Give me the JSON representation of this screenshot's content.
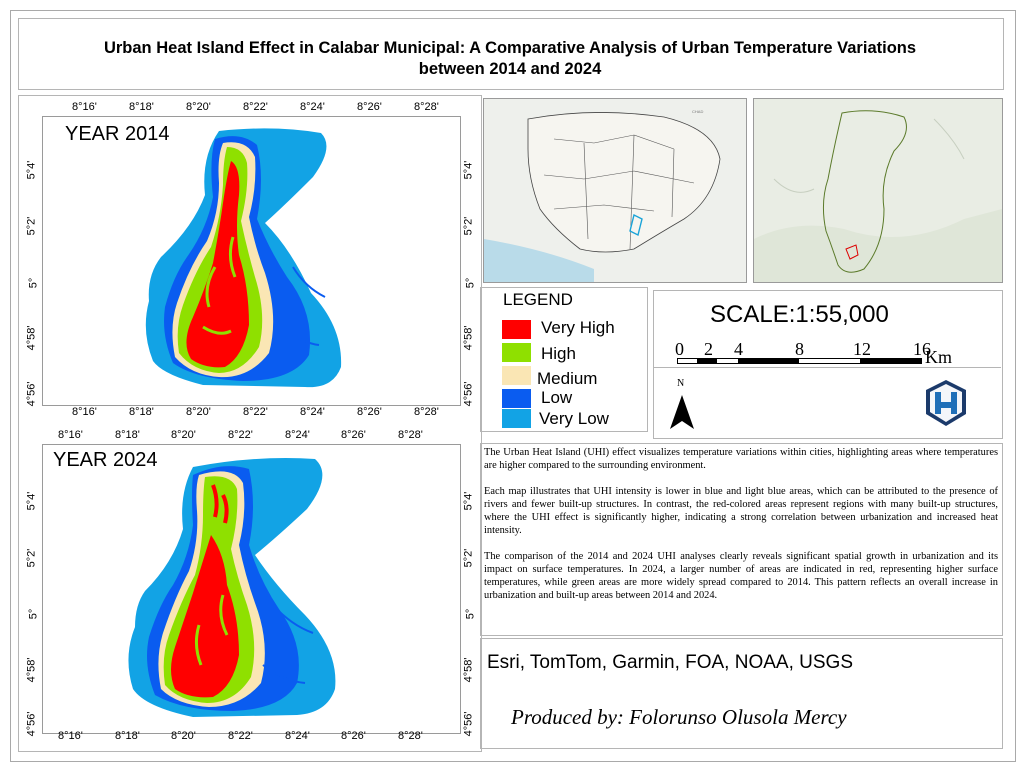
{
  "title": {
    "line1": "Urban Heat Island Effect in Calabar Municipal: A Comparative Analysis of Urban Temperature Variations",
    "line2": "between 2014 and 2024"
  },
  "maps": {
    "map2014": {
      "label": "YEAR 2014",
      "lon_ticks": [
        "8°16'",
        "8°18'",
        "8°20'",
        "8°22'",
        "8°24'",
        "8°26'",
        "8°28'"
      ],
      "lat_ticks": [
        "5°4'",
        "5°2'",
        "5°",
        "4°58'",
        "4°56'"
      ]
    },
    "map2024": {
      "label": "YEAR 2024",
      "lon_ticks": [
        "8°16'",
        "8°18'",
        "8°20'",
        "8°22'",
        "8°24'",
        "8°26'",
        "8°28'"
      ],
      "lat_ticks": [
        "5°4'",
        "5°2'",
        "5°",
        "4°58'",
        "4°56'"
      ]
    }
  },
  "inset_labels": {
    "chad": "CHAD"
  },
  "legend": {
    "title": "LEGEND",
    "items": [
      {
        "label": "Very High",
        "color": "#ff0000"
      },
      {
        "label": "High",
        "color": "#8fe000"
      },
      {
        "label": "Medium",
        "color": "#fae6b4"
      },
      {
        "label": "Low",
        "color": "#0a5cf0"
      },
      {
        "label": "Very Low",
        "color": "#12a3e5"
      }
    ]
  },
  "scale": {
    "text": "SCALE:1:55,000",
    "bar_labels": [
      "0",
      "2",
      "4",
      "8",
      "12",
      "16"
    ],
    "unit": "Km",
    "north": "N"
  },
  "description": [
    "The Urban Heat Island (UHI) effect visualizes temperature variations within cities, highlighting areas where temperatures are higher compared to the surrounding environment.",
    "Each map illustrates that UHI intensity is lower in blue and light blue areas, which can be attributed to the presence of rivers and fewer built-up structures. In contrast, the red-colored areas represent regions with many built-up structures, where the UHI effect is significantly higher, indicating a strong correlation between urbanization and increased heat intensity.",
    "The comparison of the 2014 and 2024 UHI analyses clearly reveals significant spatial growth in urbanization and its impact on surface temperatures. In 2024, a larger number of areas are indicated in red, representing higher surface temperatures, while green areas are more widely spread compared to 2014. This pattern reflects an overall increase in urbanization and built-up areas between 2014 and 2024."
  ],
  "credits": "Esri, TomTom, Garmin, FOA, NOAA, USGS",
  "producer": "Produced by: Folorunso Olusola Mercy"
}
